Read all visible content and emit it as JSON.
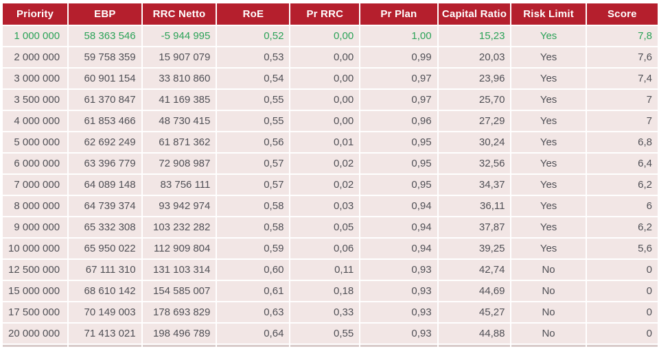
{
  "chart_data": {
    "type": "table",
    "title": "Priority optimization results table",
    "columns": [
      {
        "key": "priority",
        "label": "Priority",
        "align": "right"
      },
      {
        "key": "ebp",
        "label": "EBP",
        "align": "right"
      },
      {
        "key": "rrc-netto",
        "label": "RRC Netto",
        "align": "right"
      },
      {
        "key": "roe",
        "label": "RoE",
        "align": "right"
      },
      {
        "key": "pr-rrc",
        "label": "Pr RRC",
        "align": "right"
      },
      {
        "key": "pr-plan",
        "label": "Pr Plan",
        "align": "right"
      },
      {
        "key": "capital-ratio",
        "label": "Capital Ratio",
        "align": "right"
      },
      {
        "key": "risk-limit",
        "label": "Risk Limit",
        "align": "center"
      },
      {
        "key": "score",
        "label": "Score",
        "align": "right"
      }
    ],
    "rows": [
      {
        "highlight": true,
        "cells": [
          "1 000 000",
          "58 363 546",
          "-5 944 995",
          "0,52",
          "0,00",
          "1,00",
          "15,23",
          "Yes",
          "7,8"
        ]
      },
      {
        "highlight": false,
        "cells": [
          "2 000 000",
          "59 758 359",
          "15 907 079",
          "0,53",
          "0,00",
          "0,99",
          "20,03",
          "Yes",
          "7,6"
        ]
      },
      {
        "highlight": false,
        "cells": [
          "3 000 000",
          "60 901 154",
          "33 810 860",
          "0,54",
          "0,00",
          "0,97",
          "23,96",
          "Yes",
          "7,4"
        ]
      },
      {
        "highlight": false,
        "cells": [
          "3 500 000",
          "61 370 847",
          "41 169 385",
          "0,55",
          "0,00",
          "0,97",
          "25,70",
          "Yes",
          "7"
        ]
      },
      {
        "highlight": false,
        "cells": [
          "4 000 000",
          "61 853 466",
          "48 730 415",
          "0,55",
          "0,00",
          "0,96",
          "27,29",
          "Yes",
          "7"
        ]
      },
      {
        "highlight": false,
        "cells": [
          "5 000 000",
          "62 692 249",
          "61 871 362",
          "0,56",
          "0,01",
          "0,95",
          "30,24",
          "Yes",
          "6,8"
        ]
      },
      {
        "highlight": false,
        "cells": [
          "6 000 000",
          "63 396 779",
          "72 908 987",
          "0,57",
          "0,02",
          "0,95",
          "32,56",
          "Yes",
          "6,4"
        ]
      },
      {
        "highlight": false,
        "cells": [
          "7 000 000",
          "64 089 148",
          "83 756 111",
          "0,57",
          "0,02",
          "0,95",
          "34,37",
          "Yes",
          "6,2"
        ]
      },
      {
        "highlight": false,
        "cells": [
          "8 000 000",
          "64 739 374",
          "93 942 974",
          "0,58",
          "0,03",
          "0,94",
          "36,11",
          "Yes",
          "6"
        ]
      },
      {
        "highlight": false,
        "cells": [
          "9 000 000",
          "65 332 308",
          "103 232 282",
          "0,58",
          "0,05",
          "0,94",
          "37,87",
          "Yes",
          "6,2"
        ]
      },
      {
        "highlight": false,
        "cells": [
          "10 000 000",
          "65 950 022",
          "112 909 804",
          "0,59",
          "0,06",
          "0,94",
          "39,25",
          "Yes",
          "5,6"
        ]
      },
      {
        "highlight": false,
        "cells": [
          "12 500 000",
          "67 111 310",
          "131 103 314",
          "0,60",
          "0,11",
          "0,93",
          "42,74",
          "No",
          "0"
        ]
      },
      {
        "highlight": false,
        "cells": [
          "15 000 000",
          "68 610 142",
          "154 585 007",
          "0,61",
          "0,18",
          "0,93",
          "44,69",
          "No",
          "0"
        ]
      },
      {
        "highlight": false,
        "cells": [
          "17 500 000",
          "70 149 003",
          "178 693 829",
          "0,63",
          "0,33",
          "0,93",
          "45,27",
          "No",
          "0"
        ]
      },
      {
        "highlight": false,
        "cells": [
          "20 000 000",
          "71 413 021",
          "198 496 789",
          "0,64",
          "0,55",
          "0,93",
          "44,88",
          "No",
          "0"
        ]
      }
    ],
    "colors": {
      "header_bg": "#B51F2D",
      "header_text": "#FFFFFF",
      "row_bg": "#F2E6E5",
      "text": "#4F4F55",
      "highlight_text": "#2AA257",
      "grid": "#FFFFFF",
      "bottom_line": "#D9CBCA",
      "page_bg": "#FFFFFF"
    },
    "layout_hints": {
      "grid": "white 2px separators",
      "highlighted_row_index": 0,
      "legend": "none"
    }
  }
}
